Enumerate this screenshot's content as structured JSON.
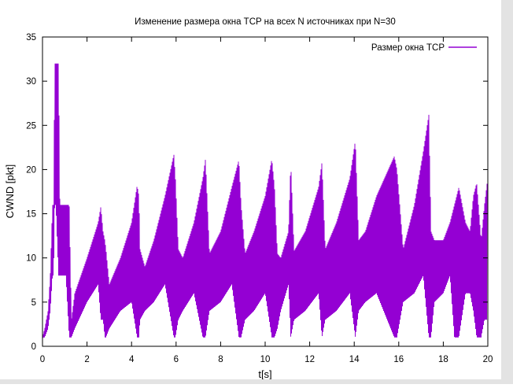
{
  "chart_data": {
    "type": "line",
    "title": "Изменение размера окна TCP на всех N источниках  при N=30",
    "xlabel": "t[s]",
    "ylabel": "CWND [pkt]",
    "xlim": [
      0,
      20
    ],
    "ylim": [
      0,
      35
    ],
    "xticks": [
      0,
      2,
      4,
      6,
      8,
      10,
      12,
      14,
      16,
      18,
      20
    ],
    "yticks": [
      0,
      5,
      10,
      15,
      20,
      25,
      30,
      35
    ],
    "grid": false,
    "legend_position": "top-right",
    "series": [
      {
        "name": "Размер окна TCP",
        "color": "#9400d3",
        "mode": "sawtooth-envelope",
        "envelope_x": [
          0.0,
          0.1,
          0.25,
          0.35,
          0.45,
          0.5,
          0.55,
          0.6,
          0.72,
          0.78,
          0.9,
          1.05,
          1.2,
          1.3,
          1.45,
          2.0,
          2.5,
          2.62,
          2.72,
          2.8,
          2.85,
          3.0,
          3.5,
          4.0,
          4.25,
          4.33,
          4.38,
          4.6,
          5.0,
          5.5,
          5.9,
          5.97,
          6.1,
          6.3,
          6.8,
          7.2,
          7.32,
          7.5,
          8.0,
          8.5,
          8.82,
          8.92,
          9.1,
          9.5,
          10.0,
          10.3,
          10.42,
          10.55,
          10.7,
          11.05,
          11.15,
          11.3,
          11.8,
          12.4,
          12.55,
          12.7,
          13.2,
          13.8,
          14.05,
          14.2,
          14.5,
          15.0,
          15.8,
          15.92,
          16.2,
          16.7,
          17.1,
          17.35,
          17.45,
          17.6,
          18.0,
          18.3,
          18.5,
          18.7,
          19.0,
          19.2,
          19.35,
          19.5,
          19.7,
          19.85,
          19.97
        ],
        "envelope_top": [
          1.0,
          2.0,
          4.0,
          8.0,
          16.0,
          16.0,
          32.0,
          32.0,
          32.0,
          16.0,
          16.0,
          16.0,
          16.0,
          3.0,
          6.0,
          10.0,
          14.0,
          15.8,
          13.0,
          12.0,
          11.0,
          7.0,
          10.0,
          14.0,
          18.2,
          17.0,
          11.0,
          9.0,
          12.0,
          17.0,
          21.7,
          19.0,
          11.0,
          10.0,
          14.0,
          19.0,
          21.2,
          10.5,
          13.0,
          18.0,
          21.1,
          16.0,
          10.5,
          13.0,
          17.0,
          21.2,
          18.0,
          10.5,
          10.0,
          13.0,
          20.8,
          10.8,
          13.0,
          18.0,
          20.8,
          11.0,
          14.0,
          19.0,
          23.3,
          12.0,
          13.0,
          17.0,
          21.5,
          20.0,
          11.0,
          16.0,
          22.0,
          26.2,
          13.0,
          12.0,
          12.0,
          14.0,
          16.0,
          18.0,
          14.0,
          13.0,
          17.0,
          18.5,
          12.0,
          16.0,
          18.5
        ],
        "envelope_bottom": [
          1.0,
          1.0,
          2.0,
          4.0,
          8.0,
          8.0,
          16.0,
          16.0,
          8.0,
          8.0,
          8.0,
          8.0,
          1.0,
          1.0,
          2.0,
          5.0,
          7.0,
          3.0,
          3.0,
          1.0,
          1.0,
          2.0,
          4.0,
          5.0,
          1.0,
          1.0,
          3.0,
          4.0,
          5.0,
          7.0,
          1.0,
          1.0,
          3.0,
          4.0,
          6.0,
          1.0,
          1.0,
          4.0,
          5.0,
          7.0,
          1.0,
          1.0,
          3.0,
          4.0,
          6.0,
          1.0,
          1.0,
          2.0,
          4.0,
          7.0,
          1.0,
          3.0,
          4.0,
          6.0,
          1.0,
          3.0,
          4.0,
          6.0,
          1.0,
          4.0,
          5.0,
          6.0,
          1.0,
          1.0,
          5.0,
          6.0,
          8.0,
          1.0,
          1.0,
          5.0,
          6.0,
          8.0,
          1.0,
          1.0,
          6.0,
          6.0,
          4.0,
          1.0,
          1.0,
          3.0,
          3.0
        ]
      }
    ]
  }
}
